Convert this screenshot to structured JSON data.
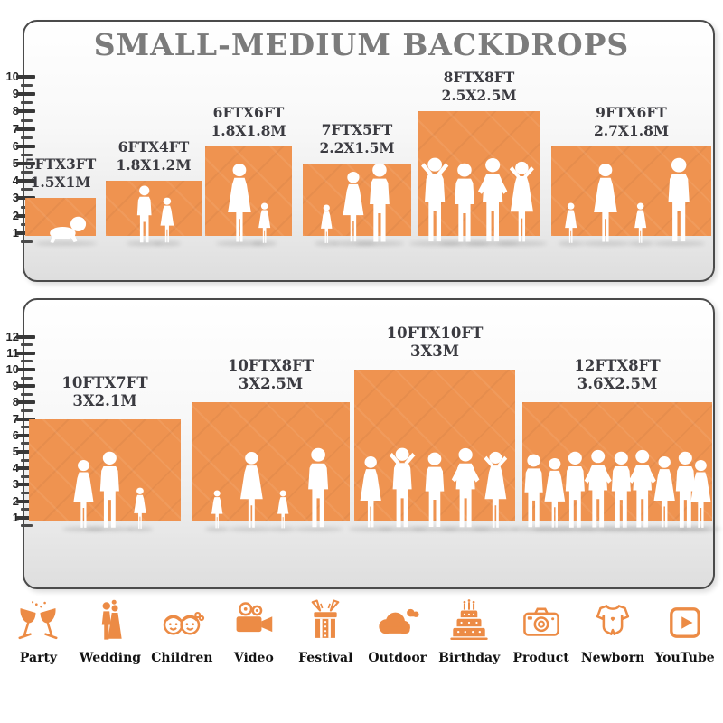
{
  "title": "SMALL-MEDIUM BACKDROPS",
  "colors": {
    "backdrop_orange": "#EF9350",
    "icon_orange": "#EC8B45",
    "title_gray": "#7B7B7B",
    "label_dark": "#3B3B41",
    "panel_border": "#4B4B4B",
    "silhouette_white": "#FFFFFF"
  },
  "chart_data": {
    "type": "bar",
    "title": "SMALL-MEDIUM BACKDROPS",
    "unit": "ft",
    "grid": "off",
    "legend": "none",
    "series": [
      {
        "name": "row-1",
        "ruler_range": [
          1,
          10
        ],
        "items": [
          {
            "label": "5FTX3FT",
            "metric": "1.5X1M",
            "width_ft": 5,
            "height_ft": 3,
            "width_m": 1.5,
            "height_m": 1
          },
          {
            "label": "6FTX4FT",
            "metric": "1.8X1.2M",
            "width_ft": 6,
            "height_ft": 4,
            "width_m": 1.8,
            "height_m": 1.2
          },
          {
            "label": "6FTX6FT",
            "metric": "1.8X1.8M",
            "width_ft": 6,
            "height_ft": 6,
            "width_m": 1.8,
            "height_m": 1.8
          },
          {
            "label": "7FTX5FT",
            "metric": "2.2X1.5M",
            "width_ft": 7,
            "height_ft": 5,
            "width_m": 2.2,
            "height_m": 1.5
          },
          {
            "label": "8FTX8FT",
            "metric": "2.5X2.5M",
            "width_ft": 8,
            "height_ft": 8,
            "width_m": 2.5,
            "height_m": 2.5
          },
          {
            "label": "9FTX6FT",
            "metric": "2.7X1.8M",
            "width_ft": 9,
            "height_ft": 6,
            "width_m": 2.7,
            "height_m": 1.8
          }
        ]
      },
      {
        "name": "row-2",
        "ruler_range": [
          1,
          12
        ],
        "items": [
          {
            "label": "10FTX7FT",
            "metric": "3X2.1M",
            "width_ft": 10,
            "height_ft": 7,
            "width_m": 3,
            "height_m": 2.1
          },
          {
            "label": "10FTX8FT",
            "metric": "3X2.5M",
            "width_ft": 10,
            "height_ft": 8,
            "width_m": 3,
            "height_m": 2.5
          },
          {
            "label": "10FTX10FT",
            "metric": "3X3M",
            "width_ft": 10,
            "height_ft": 10,
            "width_m": 3,
            "height_m": 3
          },
          {
            "label": "12FTX8FT",
            "metric": "3.6X2.5M",
            "width_ft": 12,
            "height_ft": 8,
            "width_m": 3.6,
            "height_m": 2.5
          }
        ]
      }
    ]
  },
  "silhouettes": [
    [
      [
        {
          "type": "baby",
          "x": 0.58,
          "h": 1.7
        }
      ],
      [
        {
          "type": "boy",
          "x": 0.4,
          "h": 3.4
        },
        {
          "type": "girl",
          "x": 0.64,
          "h": 2.7
        }
      ],
      [
        {
          "type": "woman",
          "x": 0.4,
          "h": 4.7
        },
        {
          "type": "girl",
          "x": 0.68,
          "h": 2.4
        }
      ],
      [
        {
          "type": "girl",
          "x": 0.22,
          "h": 2.3
        },
        {
          "type": "woman",
          "x": 0.47,
          "h": 4.2
        },
        {
          "type": "man",
          "x": 0.71,
          "h": 4.7
        }
      ],
      [
        {
          "type": "pose",
          "x": 0.14,
          "h": 5.0
        },
        {
          "type": "man",
          "x": 0.38,
          "h": 4.7
        },
        {
          "type": "akimbo",
          "x": 0.61,
          "h": 5.0
        },
        {
          "type": "posew",
          "x": 0.85,
          "h": 4.8
        }
      ],
      [
        {
          "type": "girl",
          "x": 0.12,
          "h": 2.4
        },
        {
          "type": "woman",
          "x": 0.34,
          "h": 4.7
        },
        {
          "type": "girl",
          "x": 0.56,
          "h": 2.4
        },
        {
          "type": "man",
          "x": 0.8,
          "h": 5.0
        }
      ]
    ],
    [
      [
        {
          "type": "woman",
          "x": 0.36,
          "h": 4.3
        },
        {
          "type": "man",
          "x": 0.53,
          "h": 4.8
        },
        {
          "type": "girl",
          "x": 0.73,
          "h": 2.6
        }
      ],
      [
        {
          "type": "girl",
          "x": 0.16,
          "h": 2.4
        },
        {
          "type": "woman",
          "x": 0.38,
          "h": 4.8
        },
        {
          "type": "girl",
          "x": 0.58,
          "h": 2.4
        },
        {
          "type": "man",
          "x": 0.8,
          "h": 5.0
        }
      ],
      [
        {
          "type": "woman",
          "x": 0.1,
          "h": 4.5
        },
        {
          "type": "pose",
          "x": 0.3,
          "h": 5.0
        },
        {
          "type": "man",
          "x": 0.5,
          "h": 4.7
        },
        {
          "type": "akimbo",
          "x": 0.69,
          "h": 5.0
        },
        {
          "type": "posew",
          "x": 0.88,
          "h": 4.8
        }
      ],
      [
        {
          "type": "man",
          "x": 0.06,
          "h": 4.6
        },
        {
          "type": "woman",
          "x": 0.17,
          "h": 4.4
        },
        {
          "type": "man",
          "x": 0.28,
          "h": 4.8
        },
        {
          "type": "akimbo",
          "x": 0.4,
          "h": 4.9
        },
        {
          "type": "man",
          "x": 0.52,
          "h": 4.8
        },
        {
          "type": "akimbo",
          "x": 0.63,
          "h": 4.9
        },
        {
          "type": "woman",
          "x": 0.75,
          "h": 4.5
        },
        {
          "type": "man",
          "x": 0.86,
          "h": 4.8
        },
        {
          "type": "woman",
          "x": 0.94,
          "h": 4.3
        }
      ]
    ]
  ],
  "categories": [
    {
      "label": "Party",
      "icon": "party-icon"
    },
    {
      "label": "Wedding",
      "icon": "wedding-icon"
    },
    {
      "label": "Children",
      "icon": "children-icon"
    },
    {
      "label": "Video",
      "icon": "video-icon"
    },
    {
      "label": "Festival",
      "icon": "festival-icon"
    },
    {
      "label": "Outdoor",
      "icon": "outdoor-icon"
    },
    {
      "label": "Birthday",
      "icon": "birthday-icon"
    },
    {
      "label": "Product",
      "icon": "product-icon"
    },
    {
      "label": "Newborn",
      "icon": "newborn-icon"
    },
    {
      "label": "YouTube",
      "icon": "youtube-icon"
    }
  ]
}
